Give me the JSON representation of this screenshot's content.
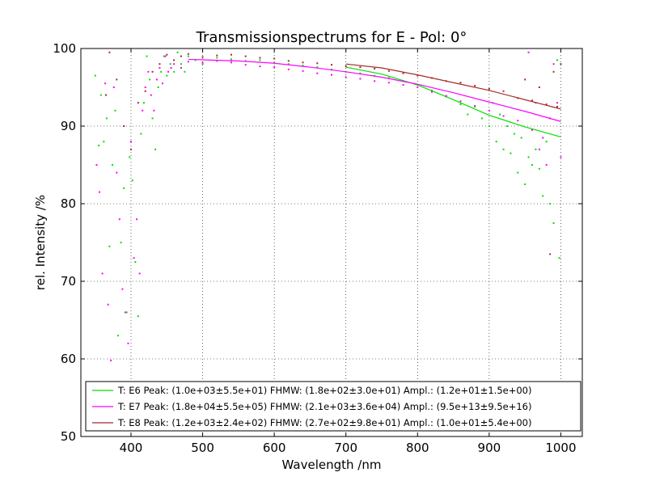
{
  "chart_data": {
    "type": "scatter",
    "title": "Transmissionspectrums for E - Pol: 0°",
    "xlabel": "Wavelength  /nm",
    "ylabel": "rel. Intensity  /%",
    "xlim": [
      330,
      1030
    ],
    "ylim": [
      50,
      100
    ],
    "xticks": [
      400,
      500,
      600,
      700,
      800,
      900,
      1000
    ],
    "yticks": [
      50,
      60,
      70,
      80,
      90,
      100
    ],
    "grid": true,
    "legend_position": "lower-center",
    "series": [
      {
        "name": "T: E6 Peak: (1.0e+03±5.5e+01)  FHMW: (1.8e+02±3.0e+01)  Ampl.: (1.2e+01±1.5e+00)",
        "color": "#00e000",
        "fit_x": [
          700,
          750,
          800,
          850,
          900,
          950,
          1000
        ],
        "fit_y": [
          97.6,
          96.7,
          95.3,
          93.4,
          91.4,
          89.9,
          88.6
        ],
        "points": [
          [
            350,
            96.5
          ],
          [
            355,
            87.5
          ],
          [
            358,
            94
          ],
          [
            362,
            88
          ],
          [
            366,
            91
          ],
          [
            370,
            74.5
          ],
          [
            374,
            85
          ],
          [
            378,
            92
          ],
          [
            382,
            63
          ],
          [
            386,
            75
          ],
          [
            390,
            82
          ],
          [
            394,
            66
          ],
          [
            398,
            86
          ],
          [
            402,
            83
          ],
          [
            406,
            72.5
          ],
          [
            410,
            65.5
          ],
          [
            414,
            89
          ],
          [
            418,
            93
          ],
          [
            422,
            99
          ],
          [
            426,
            96
          ],
          [
            430,
            91
          ],
          [
            434,
            87
          ],
          [
            438,
            95
          ],
          [
            442,
            97
          ],
          [
            446,
            99
          ],
          [
            450,
            96.5
          ],
          [
            455,
            98
          ],
          [
            460,
            97
          ],
          [
            465,
            99.5
          ],
          [
            470,
            98
          ],
          [
            475,
            97
          ],
          [
            480,
            99
          ],
          [
            490,
            98.5
          ],
          [
            500,
            98
          ],
          [
            520,
            98.8
          ],
          [
            540,
            98.6
          ],
          [
            560,
            98.4
          ],
          [
            580,
            98.5
          ],
          [
            600,
            98.2
          ],
          [
            620,
            98.0
          ],
          [
            640,
            97.8
          ],
          [
            660,
            97.6
          ],
          [
            680,
            97.3
          ],
          [
            700,
            97.0
          ],
          [
            720,
            96.8
          ],
          [
            740,
            96.5
          ],
          [
            760,
            96.2
          ],
          [
            780,
            95.8
          ],
          [
            800,
            95.3
          ],
          [
            820,
            94.6
          ],
          [
            840,
            93.8
          ],
          [
            860,
            92.8
          ],
          [
            870,
            91.5
          ],
          [
            880,
            92.5
          ],
          [
            890,
            91
          ],
          [
            900,
            90
          ],
          [
            905,
            93
          ],
          [
            910,
            88
          ],
          [
            915,
            91.5
          ],
          [
            920,
            87
          ],
          [
            925,
            90
          ],
          [
            930,
            86.5
          ],
          [
            935,
            89
          ],
          [
            940,
            84
          ],
          [
            945,
            88.5
          ],
          [
            950,
            82.5
          ],
          [
            955,
            86
          ],
          [
            960,
            85
          ],
          [
            965,
            87
          ],
          [
            970,
            84.5
          ],
          [
            975,
            81
          ],
          [
            980,
            88
          ],
          [
            985,
            80
          ],
          [
            990,
            77.5
          ],
          [
            995,
            98.5
          ],
          [
            998,
            73
          ]
        ]
      },
      {
        "name": "T: E7 Peak: (1.8e+04±5.5e+05)  FHMW: (2.1e+03±3.6e+04)  Ampl.: (9.5e+13±9.5e+16)",
        "color": "#ff00ff",
        "fit_x": [
          480,
          550,
          600,
          650,
          700,
          750,
          800,
          850,
          900,
          950,
          1000
        ],
        "fit_y": [
          98.6,
          98.4,
          98.1,
          97.6,
          97.0,
          96.3,
          95.4,
          94.3,
          93.1,
          91.9,
          90.6
        ],
        "points": [
          [
            352,
            85
          ],
          [
            356,
            81.5
          ],
          [
            360,
            71
          ],
          [
            364,
            95.5
          ],
          [
            368,
            67
          ],
          [
            372,
            59.8
          ],
          [
            376,
            95
          ],
          [
            380,
            84
          ],
          [
            384,
            78
          ],
          [
            388,
            69
          ],
          [
            392,
            66
          ],
          [
            396,
            62
          ],
          [
            400,
            88
          ],
          [
            404,
            73
          ],
          [
            408,
            78
          ],
          [
            412,
            71
          ],
          [
            416,
            92
          ],
          [
            420,
            95
          ],
          [
            424,
            97
          ],
          [
            428,
            94
          ],
          [
            432,
            92
          ],
          [
            436,
            96
          ],
          [
            440,
            97.5
          ],
          [
            444,
            95.5
          ],
          [
            448,
            99
          ],
          [
            452,
            97
          ],
          [
            456,
            97.5
          ],
          [
            460,
            98
          ],
          [
            470,
            97.5
          ],
          [
            480,
            98.3
          ],
          [
            500,
            98.2
          ],
          [
            520,
            98.4
          ],
          [
            540,
            98.2
          ],
          [
            560,
            97.9
          ],
          [
            580,
            97.7
          ],
          [
            600,
            97.6
          ],
          [
            620,
            97.3
          ],
          [
            640,
            97.1
          ],
          [
            660,
            96.8
          ],
          [
            680,
            96.6
          ],
          [
            700,
            96.3
          ],
          [
            720,
            96.1
          ],
          [
            740,
            95.8
          ],
          [
            760,
            95.6
          ],
          [
            780,
            95.3
          ],
          [
            800,
            95.0
          ],
          [
            820,
            94.4
          ],
          [
            840,
            93.9
          ],
          [
            860,
            93.2
          ],
          [
            880,
            92.6
          ],
          [
            900,
            92.0
          ],
          [
            920,
            91.3
          ],
          [
            940,
            90.7
          ],
          [
            955,
            99.5
          ],
          [
            960,
            89.5
          ],
          [
            965,
            93
          ],
          [
            970,
            87
          ],
          [
            975,
            88.5
          ],
          [
            980,
            85
          ],
          [
            985,
            91
          ],
          [
            990,
            98
          ],
          [
            995,
            93
          ],
          [
            1000,
            86
          ]
        ]
      },
      {
        "name": "T: E8 Peak: (1.2e+03±2.4e+02)  FHMW: (2.7e+02±9.8e+01)  Ampl.: (1.0e+01±5.4e+00)",
        "color": "#a52a2a",
        "fit_x": [
          700,
          750,
          800,
          850,
          900,
          950,
          1000
        ],
        "fit_y": [
          98.0,
          97.5,
          96.6,
          95.6,
          94.6,
          93.4,
          92.2
        ],
        "points": [
          [
            365,
            94
          ],
          [
            370,
            99.5
          ],
          [
            380,
            96
          ],
          [
            390,
            90
          ],
          [
            400,
            87
          ],
          [
            410,
            93
          ],
          [
            420,
            94.5
          ],
          [
            430,
            97
          ],
          [
            440,
            98
          ],
          [
            450,
            99.2
          ],
          [
            460,
            98.5
          ],
          [
            470,
            99
          ],
          [
            480,
            99.3
          ],
          [
            500,
            98.9
          ],
          [
            520,
            99.1
          ],
          [
            540,
            99.2
          ],
          [
            560,
            99.0
          ],
          [
            580,
            98.8
          ],
          [
            600,
            98.7
          ],
          [
            620,
            98.4
          ],
          [
            640,
            98.2
          ],
          [
            660,
            98.1
          ],
          [
            680,
            97.9
          ],
          [
            700,
            97.7
          ],
          [
            720,
            97.6
          ],
          [
            740,
            97.4
          ],
          [
            760,
            97.1
          ],
          [
            780,
            96.8
          ],
          [
            800,
            96.5
          ],
          [
            820,
            96.2
          ],
          [
            840,
            95.8
          ],
          [
            860,
            95.6
          ],
          [
            880,
            95.2
          ],
          [
            900,
            94.8
          ],
          [
            920,
            94.5
          ],
          [
            940,
            93.6
          ],
          [
            950,
            96
          ],
          [
            960,
            93.3
          ],
          [
            970,
            95
          ],
          [
            980,
            92.8
          ],
          [
            985,
            73.5
          ],
          [
            990,
            97
          ],
          [
            995,
            92.5
          ],
          [
            1000,
            98
          ]
        ]
      }
    ]
  }
}
